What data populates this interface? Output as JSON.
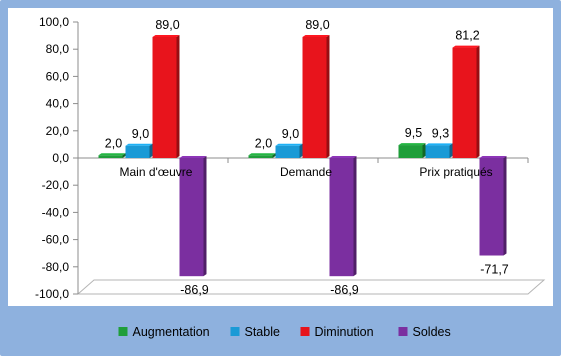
{
  "chart_data": {
    "type": "bar",
    "categories": [
      "Main d'œuvre",
      "Demande",
      "Prix pratiqués"
    ],
    "series": [
      {
        "name": "Augmentation",
        "values": [
          2.0,
          2.0,
          9.5
        ],
        "labels": [
          "2,0",
          "2,0",
          "9,5"
        ],
        "color": "#1f9e3a"
      },
      {
        "name": "Stable",
        "values": [
          9.0,
          9.0,
          9.3
        ],
        "labels": [
          "9,0",
          "9,0",
          "9,3"
        ],
        "color": "#1a9ad6"
      },
      {
        "name": "Diminution",
        "values": [
          89.0,
          89.0,
          81.2
        ],
        "labels": [
          "89,0",
          "89,0",
          "81,2"
        ],
        "color": "#e8141c"
      },
      {
        "name": "Soldes",
        "values": [
          -86.9,
          -86.9,
          -71.7
        ],
        "labels": [
          "-86,9",
          "-86,9",
          "-71,7"
        ],
        "color": "#7b2fa0"
      }
    ],
    "yticks": [
      100,
      80,
      60,
      40,
      20,
      0,
      -20,
      -40,
      -60,
      -80,
      -100
    ],
    "ytick_labels": [
      "100,0",
      "80,0",
      "60,0",
      "40,0",
      "20,0",
      "0,0",
      "-20,0",
      "-40,0",
      "-60,0",
      "-80,0",
      "-100,0"
    ],
    "ylim": [
      -100,
      100
    ],
    "title": "",
    "xlabel": "",
    "ylabel": "",
    "legend_position": "bottom",
    "grid": false,
    "background": "#8eb1de"
  }
}
